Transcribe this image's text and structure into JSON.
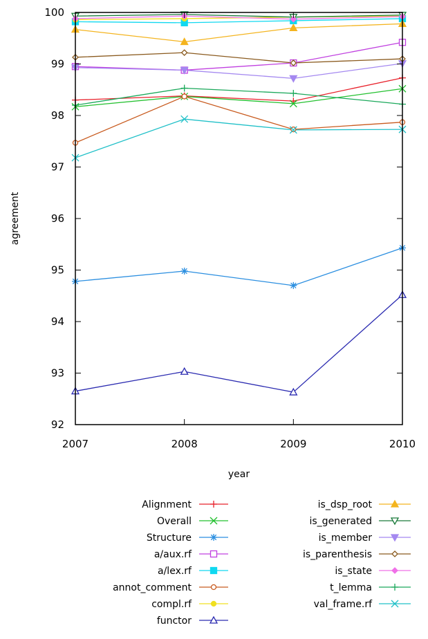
{
  "chart_data": {
    "type": "line",
    "title": "",
    "xlabel": "year",
    "ylabel": "agreement",
    "x": [
      2007,
      2008,
      2009,
      2010
    ],
    "xlim": [
      2007,
      2010
    ],
    "ylim": [
      92,
      100
    ],
    "x_ticks": [
      "2007",
      "2008",
      "2009",
      "2010"
    ],
    "y_ticks": [
      "92",
      "93",
      "94",
      "95",
      "96",
      "97",
      "98",
      "99",
      "100"
    ],
    "grid": false,
    "legend_position": "bottom",
    "series": [
      {
        "name": "Alignment",
        "color": "#e8202a",
        "marker": "plus",
        "values": [
          98.3,
          98.38,
          98.28,
          98.73
        ]
      },
      {
        "name": "Overall",
        "color": "#22c02e",
        "marker": "x",
        "values": [
          98.17,
          98.37,
          98.23,
          98.52
        ]
      },
      {
        "name": "Structure",
        "color": "#2a8ee0",
        "marker": "asterisk",
        "values": [
          94.78,
          94.98,
          94.7,
          95.43
        ]
      },
      {
        "name": "a/aux.rf",
        "color": "#c040e0",
        "marker": "square-open",
        "values": [
          98.95,
          98.88,
          99.02,
          99.42
        ]
      },
      {
        "name": "a/lex.rf",
        "color": "#10d8f0",
        "marker": "square-filled",
        "values": [
          99.82,
          99.8,
          99.84,
          99.88
        ]
      },
      {
        "name": "annot_comment",
        "color": "#c85a1e",
        "marker": "circle-open",
        "values": [
          97.47,
          98.37,
          97.73,
          97.87
        ]
      },
      {
        "name": "compl.rf",
        "color": "#f0e020",
        "marker": "circle-filled",
        "values": [
          99.86,
          99.88,
          99.91,
          99.93
        ]
      },
      {
        "name": "functor",
        "color": "#2a2ab0",
        "marker": "triangle-open",
        "values": [
          92.65,
          93.03,
          92.63,
          94.52
        ]
      },
      {
        "name": "is_dsp_root",
        "color": "#f4b41e",
        "marker": "triangle-filled",
        "values": [
          99.67,
          99.43,
          99.7,
          99.78
        ]
      },
      {
        "name": "is_generated",
        "color": "#1a7a3a",
        "marker": "triangle-down-open",
        "values": [
          99.93,
          99.96,
          99.91,
          99.95
        ]
      },
      {
        "name": "is_member",
        "color": "#a488f0",
        "marker": "triangle-down-filled",
        "values": [
          98.93,
          98.88,
          98.72,
          99.01
        ]
      },
      {
        "name": "is_parenthesis",
        "color": "#8a5a1e",
        "marker": "diamond-open",
        "values": [
          99.13,
          99.22,
          99.02,
          99.1
        ]
      },
      {
        "name": "is_state",
        "color": "#f070e8",
        "marker": "diamond-filled",
        "values": [
          99.88,
          99.93,
          99.87,
          99.92
        ]
      },
      {
        "name": "t_lemma",
        "color": "#1aa85a",
        "marker": "plus",
        "values": [
          98.2,
          98.53,
          98.43,
          98.22
        ]
      },
      {
        "name": "val_frame.rf",
        "color": "#20c0c8",
        "marker": "x",
        "values": [
          97.18,
          97.93,
          97.72,
          97.73
        ]
      }
    ]
  }
}
